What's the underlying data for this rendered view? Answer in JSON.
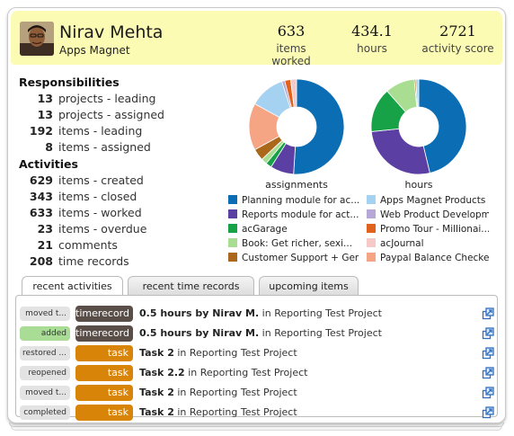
{
  "header": {
    "name": "Nirav Mehta",
    "company": "Apps Magnet",
    "stats": [
      {
        "value": "633",
        "label": "items worked"
      },
      {
        "value": "434.1",
        "label": "hours"
      },
      {
        "value": "2721",
        "label": "activity score"
      }
    ]
  },
  "responsibilities": {
    "title": "Responsibilities",
    "rows": [
      {
        "n": "13",
        "label": "projects - leading"
      },
      {
        "n": "13",
        "label": "projects - assigned"
      },
      {
        "n": "192",
        "label": "items - leading"
      },
      {
        "n": "8",
        "label": "items - assigned"
      }
    ]
  },
  "activities": {
    "title": "Activities",
    "rows": [
      {
        "n": "629",
        "label": "items - created"
      },
      {
        "n": "343",
        "label": "items - closed"
      },
      {
        "n": "633",
        "label": "items - worked"
      },
      {
        "n": "23",
        "label": "items - overdue"
      },
      {
        "n": "21",
        "label": "comments"
      },
      {
        "n": "208",
        "label": "time records"
      }
    ]
  },
  "charts": {
    "assignments": {
      "caption": "assignments",
      "slices": [
        {
          "color": "#0b6db3",
          "value": 51
        },
        {
          "color": "#5c3fa3",
          "value": 8
        },
        {
          "color": "#17a248",
          "value": 2
        },
        {
          "color": "#a8dd92",
          "value": 2
        },
        {
          "color": "#ac681a",
          "value": 4
        },
        {
          "color": "#f5a584",
          "value": 16
        },
        {
          "color": "#a6d2f2",
          "value": 12
        },
        {
          "color": "#b6a7d6",
          "value": 1
        },
        {
          "color": "#e0621c",
          "value": 2
        },
        {
          "color": "#f5c9c7",
          "value": 2
        }
      ]
    },
    "hours": {
      "caption": "hours",
      "slices": [
        {
          "color": "#0b6db3",
          "value": 46
        },
        {
          "color": "#5c3fa3",
          "value": 27
        },
        {
          "color": "#17a248",
          "value": 15
        },
        {
          "color": "#a8dd92",
          "value": 10
        },
        {
          "color": "#ac681a",
          "value": 0.5
        },
        {
          "color": "#a6d2f2",
          "value": 1
        }
      ]
    }
  },
  "legend": [
    {
      "color": "#0b6db3",
      "label": "Planning module for ac..."
    },
    {
      "color": "#a6d2f2",
      "label": "Apps Magnet Products"
    },
    {
      "color": "#5c3fa3",
      "label": "Reports module for act..."
    },
    {
      "color": "#b6a7d6",
      "label": "Web Product Developmen"
    },
    {
      "color": "#17a248",
      "label": "acGarage"
    },
    {
      "color": "#e0621c",
      "label": "Promo Tour - Millionai..."
    },
    {
      "color": "#a8dd92",
      "label": "Book: Get richer, sexi..."
    },
    {
      "color": "#f5c9c7",
      "label": "acJournal"
    },
    {
      "color": "#ac681a",
      "label": "Customer Support + Gen..."
    },
    {
      "color": "#f5a584",
      "label": "Paypal Balance Checker v"
    }
  ],
  "tabs": [
    {
      "label": "recent activities"
    },
    {
      "label": "recent time records"
    },
    {
      "label": "upcoming items"
    }
  ],
  "activity_rows": [
    {
      "action": "moved t...",
      "type": "timerecord",
      "title": "0.5 hours by Nirav M.",
      "context": "in Reporting Test Project"
    },
    {
      "action": "added",
      "type": "timerecord",
      "title": "0.5 hours by Nirav M.",
      "context": "in Reporting Test Project"
    },
    {
      "action": "restored ...",
      "type": "task",
      "title": "Task 2",
      "context": "in Reporting Test Project"
    },
    {
      "action": "reopened",
      "type": "task",
      "title": "Task 2.2",
      "context": "in Reporting Test Project"
    },
    {
      "action": "moved t...",
      "type": "task",
      "title": "Task 2",
      "context": "in Reporting Test Project"
    },
    {
      "action": "completed",
      "type": "task",
      "title": "Task 2",
      "context": "in Reporting Test Project"
    }
  ]
}
